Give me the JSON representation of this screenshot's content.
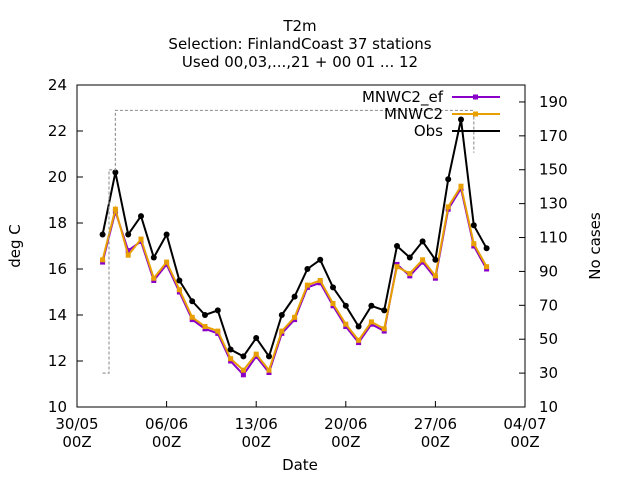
{
  "chart_data": {
    "type": "line",
    "title_lines": [
      "T2m",
      "Selection: FinlandCoast      37 stations",
      "Used 00,03,...,21 + 00 01 ... 12"
    ],
    "xlabel": "Date",
    "ylabel": "deg C",
    "y2label": "No cases",
    "x_range": [
      "2025-05-30T00",
      "2025-07-04T00"
    ],
    "xticks": [
      {
        "date": "2025-05-30T00",
        "label1": "30/05",
        "label2": "00Z"
      },
      {
        "date": "2025-06-06T00",
        "label1": "06/06",
        "label2": "00Z"
      },
      {
        "date": "2025-06-13T00",
        "label1": "13/06",
        "label2": "00Z"
      },
      {
        "date": "2025-06-20T00",
        "label1": "20/06",
        "label2": "00Z"
      },
      {
        "date": "2025-06-27T00",
        "label1": "27/06",
        "label2": "00Z"
      },
      {
        "date": "2025-07-04T00",
        "label1": "04/07",
        "label2": "00Z"
      }
    ],
    "ylim": [
      10,
      24
    ],
    "yticks": [
      10,
      12,
      14,
      16,
      18,
      20,
      22,
      24
    ],
    "y2lim": [
      10,
      200
    ],
    "y2ticks": [
      10,
      30,
      50,
      70,
      90,
      110,
      130,
      150,
      170,
      190
    ],
    "legend_position": "top-right",
    "series": [
      {
        "name": "MNWC2_ef",
        "color": "#8b00c8",
        "axis": "left",
        "x": [
          "2025-06-01T00",
          "2025-06-02T00",
          "2025-06-03T00",
          "2025-06-04T00",
          "2025-06-05T00",
          "2025-06-06T00",
          "2025-06-07T00",
          "2025-06-08T00",
          "2025-06-09T00",
          "2025-06-10T00",
          "2025-06-11T00",
          "2025-06-12T00",
          "2025-06-13T00",
          "2025-06-14T00",
          "2025-06-15T00",
          "2025-06-16T00",
          "2025-06-17T00",
          "2025-06-18T00",
          "2025-06-19T00",
          "2025-06-20T00",
          "2025-06-21T00",
          "2025-06-22T00",
          "2025-06-23T00",
          "2025-06-24T00",
          "2025-06-25T00",
          "2025-06-26T00",
          "2025-06-27T00",
          "2025-06-28T00",
          "2025-06-29T00",
          "2025-06-30T00",
          "2025-07-01T00"
        ],
        "y": [
          16.3,
          18.5,
          16.8,
          17.2,
          15.5,
          16.2,
          15.0,
          13.8,
          13.4,
          13.2,
          12.0,
          11.4,
          12.2,
          11.5,
          13.2,
          13.8,
          15.2,
          15.4,
          14.4,
          13.5,
          12.8,
          13.6,
          13.3,
          16.2,
          15.7,
          16.3,
          15.6,
          18.6,
          19.5,
          17.0,
          16.0
        ]
      },
      {
        "name": "MNWC2",
        "color": "#e8a000",
        "axis": "left",
        "x": [
          "2025-06-01T00",
          "2025-06-02T00",
          "2025-06-03T00",
          "2025-06-04T00",
          "2025-06-05T00",
          "2025-06-06T00",
          "2025-06-07T00",
          "2025-06-08T00",
          "2025-06-09T00",
          "2025-06-10T00",
          "2025-06-11T00",
          "2025-06-12T00",
          "2025-06-13T00",
          "2025-06-14T00",
          "2025-06-15T00",
          "2025-06-16T00",
          "2025-06-17T00",
          "2025-06-18T00",
          "2025-06-19T00",
          "2025-06-20T00",
          "2025-06-21T00",
          "2025-06-22T00",
          "2025-06-23T00",
          "2025-06-24T00",
          "2025-06-25T00",
          "2025-06-26T00",
          "2025-06-27T00",
          "2025-06-28T00",
          "2025-06-29T00",
          "2025-06-30T00",
          "2025-07-01T00"
        ],
        "y": [
          16.4,
          18.6,
          16.6,
          17.3,
          15.6,
          16.3,
          15.1,
          13.9,
          13.5,
          13.3,
          12.1,
          11.6,
          12.3,
          11.6,
          13.3,
          13.9,
          15.3,
          15.5,
          14.5,
          13.6,
          12.9,
          13.7,
          13.4,
          16.1,
          15.8,
          16.4,
          15.7,
          18.7,
          19.6,
          17.1,
          16.1
        ]
      },
      {
        "name": "Obs",
        "color": "#000000",
        "axis": "left",
        "x": [
          "2025-06-01T00",
          "2025-06-02T00",
          "2025-06-03T00",
          "2025-06-04T00",
          "2025-06-05T00",
          "2025-06-06T00",
          "2025-06-07T00",
          "2025-06-08T00",
          "2025-06-09T00",
          "2025-06-10T00",
          "2025-06-11T00",
          "2025-06-12T00",
          "2025-06-13T00",
          "2025-06-14T00",
          "2025-06-15T00",
          "2025-06-16T00",
          "2025-06-17T00",
          "2025-06-18T00",
          "2025-06-19T00",
          "2025-06-20T00",
          "2025-06-21T00",
          "2025-06-22T00",
          "2025-06-23T00",
          "2025-06-24T00",
          "2025-06-25T00",
          "2025-06-26T00",
          "2025-06-27T00",
          "2025-06-28T00",
          "2025-06-29T00",
          "2025-06-30T00",
          "2025-07-01T00"
        ],
        "y": [
          17.5,
          20.2,
          17.5,
          18.3,
          16.5,
          17.5,
          15.5,
          14.6,
          14.0,
          14.2,
          12.5,
          12.2,
          13.0,
          12.2,
          14.0,
          14.8,
          16.0,
          16.4,
          15.2,
          14.4,
          13.5,
          14.4,
          14.2,
          17.0,
          16.5,
          17.2,
          16.4,
          19.9,
          22.5,
          17.9,
          16.9
        ]
      },
      {
        "name": "No cases",
        "color": "#999999",
        "axis": "right",
        "x": [
          "2025-06-01T00",
          "2025-06-01T12",
          "2025-06-02T00",
          "2025-06-03T00",
          "2025-06-04T00",
          "2025-06-05T00",
          "2025-06-06T00",
          "2025-06-07T00",
          "2025-06-08T00",
          "2025-06-09T00",
          "2025-06-10T00",
          "2025-06-11T00",
          "2025-06-12T00",
          "2025-06-13T00",
          "2025-06-14T00",
          "2025-06-15T00",
          "2025-06-16T00",
          "2025-06-17T00",
          "2025-06-18T00",
          "2025-06-19T00",
          "2025-06-20T00",
          "2025-06-21T00",
          "2025-06-22T00",
          "2025-06-23T00",
          "2025-06-24T00",
          "2025-06-25T00",
          "2025-06-26T00",
          "2025-06-27T00",
          "2025-06-28T00",
          "2025-06-29T00",
          "2025-06-30T00"
        ],
        "y": [
          30,
          150,
          185,
          185,
          185,
          185,
          185,
          185,
          185,
          185,
          185,
          185,
          185,
          185,
          185,
          185,
          185,
          185,
          185,
          185,
          185,
          185,
          185,
          185,
          185,
          185,
          185,
          185,
          185,
          185,
          160
        ]
      }
    ]
  }
}
